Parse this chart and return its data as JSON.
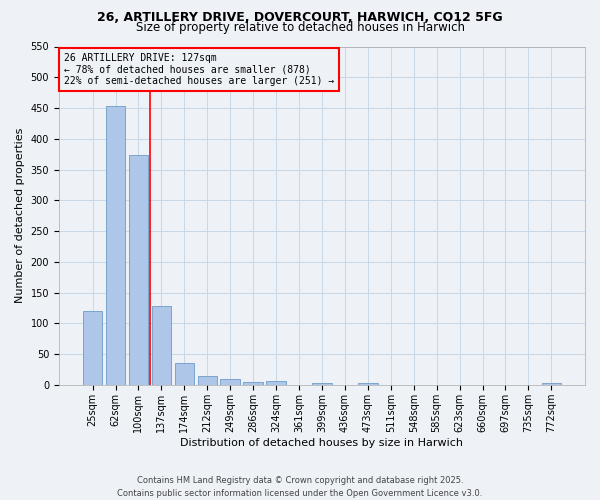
{
  "title1": "26, ARTILLERY DRIVE, DOVERCOURT, HARWICH, CO12 5FG",
  "title2": "Size of property relative to detached houses in Harwich",
  "xlabel": "Distribution of detached houses by size in Harwich",
  "ylabel": "Number of detached properties",
  "footer": "Contains HM Land Registry data © Crown copyright and database right 2025.\nContains public sector information licensed under the Open Government Licence v3.0.",
  "categories": [
    "25sqm",
    "62sqm",
    "100sqm",
    "137sqm",
    "174sqm",
    "212sqm",
    "249sqm",
    "286sqm",
    "324sqm",
    "361sqm",
    "399sqm",
    "436sqm",
    "473sqm",
    "511sqm",
    "548sqm",
    "585sqm",
    "623sqm",
    "660sqm",
    "697sqm",
    "735sqm",
    "772sqm"
  ],
  "values": [
    120,
    453,
    373,
    128,
    35,
    14,
    9,
    5,
    6,
    0,
    3,
    0,
    3,
    0,
    0,
    0,
    0,
    0,
    0,
    0,
    3
  ],
  "bar_color": "#aec6e8",
  "bar_edge_color": "#5a8fc0",
  "grid_color": "#c8d8e8",
  "background_color": "#eef2f7",
  "vline_x": 2.5,
  "vline_color": "red",
  "annotation_text": "26 ARTILLERY DRIVE: 127sqm\n← 78% of detached houses are smaller (878)\n22% of semi-detached houses are larger (251) →",
  "annotation_box_color": "red",
  "ylim": [
    0,
    550
  ],
  "yticks": [
    0,
    50,
    100,
    150,
    200,
    250,
    300,
    350,
    400,
    450,
    500,
    550
  ],
  "title1_fontsize": 9,
  "title2_fontsize": 8.5,
  "xlabel_fontsize": 8,
  "ylabel_fontsize": 8,
  "tick_fontsize": 7,
  "annotation_fontsize": 7,
  "footer_fontsize": 6
}
